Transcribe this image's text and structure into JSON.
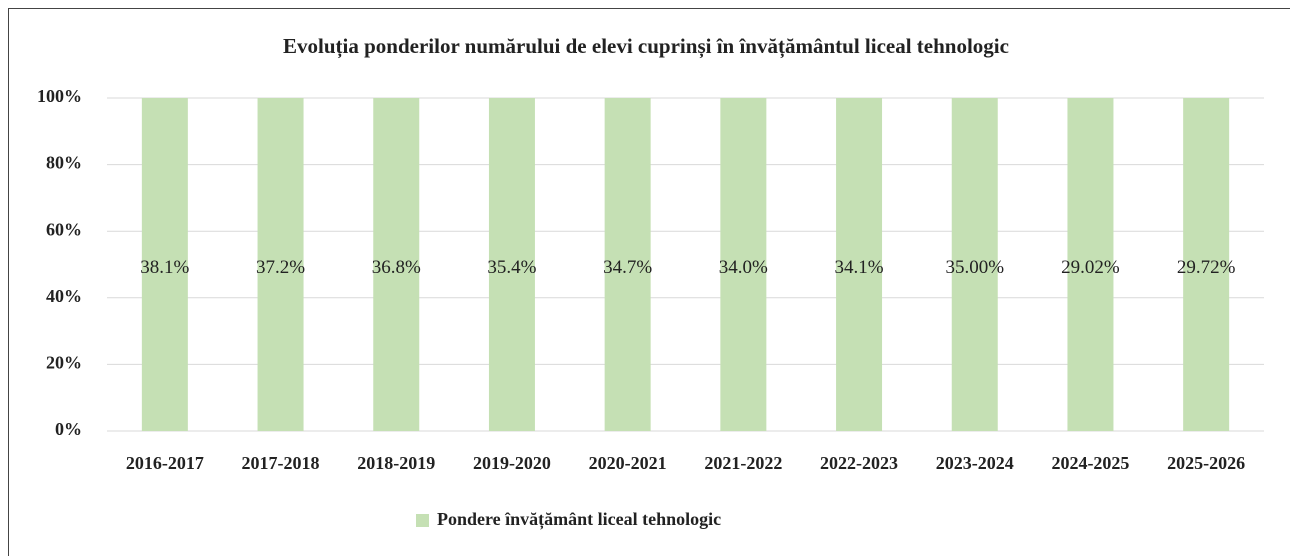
{
  "chart_data": {
    "type": "bar",
    "stacking": "percent",
    "title": "Evoluția ponderilor numărului de elevi cuprinși în învățământul liceal tehnologic",
    "categories": [
      "2016-2017",
      "2017-2018",
      "2018-2019",
      "2019-2020",
      "2020-2021",
      "2021-2022",
      "2022-2023",
      "2023-2024",
      "2024-2025",
      "2025-2026"
    ],
    "series": [
      {
        "name": "Pondere învățământ liceal tehnologic",
        "color": "#c5e0b4",
        "values": [
          38.1,
          37.2,
          36.8,
          35.4,
          34.7,
          34.0,
          34.1,
          35.0,
          29.02,
          29.72
        ],
        "value_labels": [
          "38.1%",
          "37.2%",
          "36.8%",
          "35.4%",
          "34.7%",
          "34.0%",
          "34.1%",
          "35.00%",
          "29.02%",
          "29.72%"
        ]
      }
    ],
    "ylim": [
      0,
      100
    ],
    "yticks": [
      {
        "value": 0,
        "label": "0%"
      },
      {
        "value": 20,
        "label": "20%"
      },
      {
        "value": 40,
        "label": "40%"
      },
      {
        "value": 60,
        "label": "60%"
      },
      {
        "value": 80,
        "label": "80%"
      },
      {
        "value": 100,
        "label": "100%"
      }
    ],
    "grid": true,
    "legend": "bottom"
  }
}
